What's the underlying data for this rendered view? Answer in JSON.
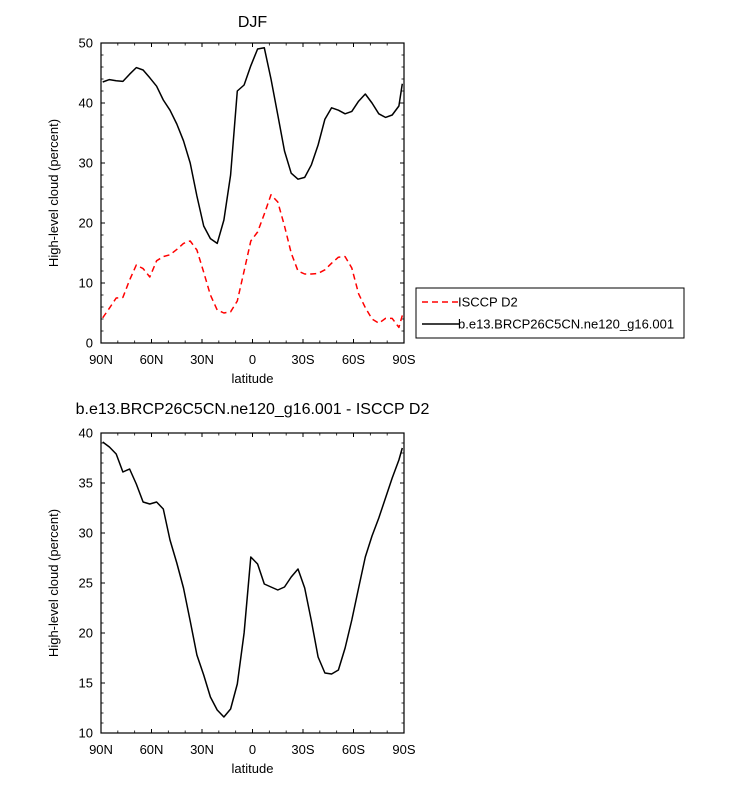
{
  "chart_data": [
    {
      "type": "line",
      "title": "DJF",
      "xlabel": "latitude",
      "ylabel": "High-level cloud (percent)",
      "xlim": [
        90,
        -90
      ],
      "ylim": [
        0,
        50
      ],
      "x_ticks": [
        90,
        60,
        30,
        0,
        -30,
        -60,
        -90
      ],
      "x_tick_labels": [
        "90N",
        "60N",
        "30N",
        "0",
        "30S",
        "60S",
        "90S"
      ],
      "y_ticks": [
        0,
        10,
        20,
        30,
        40,
        50
      ],
      "y_tick_labels": [
        "0",
        "10",
        "20",
        "30",
        "40",
        "50"
      ],
      "legend_position": "right",
      "series": [
        {
          "name": "ISCCP D2",
          "color": "#ff0000",
          "dash": "dashed",
          "x": [
            89,
            85,
            81,
            77,
            73,
            69,
            65,
            61,
            57,
            53,
            49,
            45,
            41,
            37,
            33,
            29,
            25,
            21,
            17,
            13,
            9,
            5,
            1,
            -3,
            -7,
            -11,
            -15,
            -19,
            -23,
            -27,
            -31,
            -35,
            -39,
            -43,
            -47,
            -51,
            -55,
            -59,
            -63,
            -67,
            -71,
            -75,
            -79,
            -83,
            -87,
            -89
          ],
          "y": [
            4.2,
            5.8,
            7.5,
            7.6,
            10.5,
            13.0,
            12.4,
            11.0,
            13.7,
            14.4,
            14.7,
            15.6,
            16.6,
            17.0,
            15.5,
            11.8,
            8.0,
            5.5,
            5.0,
            5.2,
            7.0,
            12.0,
            17.0,
            18.5,
            21.5,
            24.7,
            23.5,
            19.5,
            15.0,
            12.0,
            11.5,
            11.5,
            11.6,
            12.2,
            13.3,
            14.3,
            14.4,
            12.5,
            8.2,
            5.9,
            4.0,
            3.3,
            4.1,
            4.1,
            2.6,
            4.6
          ]
        },
        {
          "name": "b.e13.BRCP26C5CN.ne120_g16.001",
          "color": "#000000",
          "dash": "solid",
          "x": [
            89,
            85,
            81,
            77,
            73,
            69,
            65,
            61,
            57,
            53,
            49,
            45,
            41,
            37,
            33,
            29,
            25,
            21,
            17,
            13,
            9,
            5,
            1,
            -3,
            -7,
            -11,
            -15,
            -19,
            -23,
            -27,
            -31,
            -35,
            -39,
            -43,
            -47,
            -51,
            -55,
            -59,
            -63,
            -67,
            -71,
            -75,
            -79,
            -83,
            -87,
            -89
          ],
          "y": [
            43.5,
            43.9,
            43.7,
            43.6,
            44.8,
            45.9,
            45.5,
            44.2,
            42.8,
            40.5,
            38.8,
            36.5,
            33.7,
            30.0,
            24.5,
            19.5,
            17.4,
            16.6,
            20.5,
            28.0,
            42.0,
            43.0,
            46.2,
            49.0,
            49.2,
            44.0,
            38.0,
            32.0,
            28.3,
            27.3,
            27.6,
            29.7,
            33.0,
            37.3,
            39.2,
            38.8,
            38.2,
            38.6,
            40.3,
            41.5,
            40.0,
            38.2,
            37.6,
            38.0,
            39.5,
            43.2
          ]
        }
      ]
    },
    {
      "type": "line",
      "title": "b.e13.BRCP26C5CN.ne120_g16.001 - ISCCP D2",
      "xlabel": "latitude",
      "ylabel": "High-level cloud (percent)",
      "xlim": [
        90,
        -90
      ],
      "ylim": [
        10,
        40
      ],
      "x_ticks": [
        90,
        60,
        30,
        0,
        -30,
        -60,
        -90
      ],
      "x_tick_labels": [
        "90N",
        "60N",
        "30N",
        "0",
        "30S",
        "60S",
        "90S"
      ],
      "y_ticks": [
        10,
        15,
        20,
        25,
        30,
        35,
        40
      ],
      "y_tick_labels": [
        "10",
        "15",
        "20",
        "25",
        "30",
        "35",
        "40"
      ],
      "series": [
        {
          "color": "#000000",
          "dash": "solid",
          "x": [
            89,
            85,
            81,
            77,
            73,
            69,
            65,
            61,
            57,
            53,
            49,
            45,
            41,
            37,
            33,
            29,
            25,
            21,
            17,
            13,
            9,
            5,
            1,
            -3,
            -7,
            -11,
            -15,
            -19,
            -23,
            -27,
            -31,
            -35,
            -39,
            -43,
            -47,
            -51,
            -55,
            -59,
            -63,
            -67,
            -71,
            -75,
            -79,
            -83,
            -87,
            -89
          ],
          "y": [
            39.1,
            38.6,
            37.9,
            36.1,
            36.4,
            34.9,
            33.1,
            32.9,
            33.1,
            32.4,
            29.3,
            27.0,
            24.5,
            21.2,
            17.8,
            15.8,
            13.6,
            12.3,
            11.6,
            12.4,
            14.9,
            20.0,
            27.6,
            26.9,
            24.9,
            24.6,
            24.3,
            24.6,
            25.6,
            26.4,
            24.5,
            21.2,
            17.6,
            16.0,
            15.9,
            16.3,
            18.5,
            21.3,
            24.5,
            27.6,
            29.7,
            31.5,
            33.5,
            35.5,
            37.3,
            38.5
          ]
        }
      ]
    }
  ]
}
